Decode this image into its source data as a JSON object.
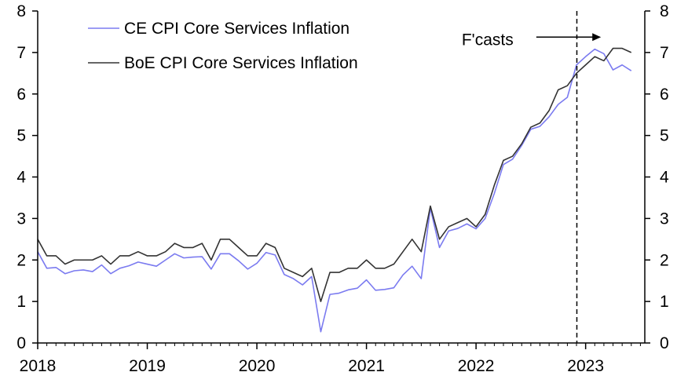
{
  "chart_data": {
    "type": "line",
    "title": "",
    "xlabel": "",
    "ylabel": "",
    "ylim": [
      0,
      8
    ],
    "yticks": [
      0,
      1,
      2,
      3,
      4,
      5,
      6,
      7,
      8
    ],
    "y2lim": [
      0,
      8
    ],
    "y2ticks": [
      0,
      1,
      2,
      3,
      4,
      5,
      6,
      7,
      8
    ],
    "xlim": [
      2018.0,
      2023.54
    ],
    "xticks": [
      {
        "value": 2018.0,
        "label": "2018"
      },
      {
        "value": 2019.0,
        "label": "2019"
      },
      {
        "value": 2020.0,
        "label": "2020"
      },
      {
        "value": 2021.0,
        "label": "2021"
      },
      {
        "value": 2022.0,
        "label": "2022"
      },
      {
        "value": 2023.0,
        "label": "2023"
      }
    ],
    "legend_position": "top-left",
    "colors": {
      "ce": "#7b7bf0",
      "boe": "#333333",
      "axis": "#000000"
    },
    "start": 2018.0,
    "step": 0.08333,
    "series": [
      {
        "name": "CE CPI Core Services Inflation",
        "key": "ce",
        "values": [
          2.2,
          1.8,
          1.82,
          1.67,
          1.74,
          1.76,
          1.72,
          1.88,
          1.67,
          1.8,
          1.86,
          1.95,
          1.9,
          1.85,
          2.0,
          2.15,
          2.05,
          2.07,
          2.08,
          1.78,
          2.15,
          2.15,
          1.98,
          1.78,
          1.92,
          2.18,
          2.12,
          1.65,
          1.55,
          1.4,
          1.6,
          0.27,
          1.17,
          1.2,
          1.28,
          1.32,
          1.52,
          1.27,
          1.29,
          1.33,
          1.64,
          1.85,
          1.55,
          3.25,
          2.3,
          2.7,
          2.76,
          2.87,
          2.75,
          3.0,
          3.6,
          4.3,
          4.43,
          4.76,
          5.15,
          5.22,
          5.45,
          5.75,
          5.92,
          6.7,
          6.9,
          7.08,
          6.97,
          6.58,
          6.7,
          6.56
        ]
      },
      {
        "name": "BoE CPI Core Services Inflation",
        "key": "boe",
        "values": [
          2.5,
          2.1,
          2.1,
          1.9,
          2.0,
          2.0,
          2.0,
          2.1,
          1.9,
          2.1,
          2.1,
          2.2,
          2.1,
          2.1,
          2.2,
          2.4,
          2.3,
          2.3,
          2.4,
          2.0,
          2.5,
          2.5,
          2.3,
          2.1,
          2.1,
          2.4,
          2.3,
          1.8,
          1.7,
          1.6,
          1.8,
          1.0,
          1.7,
          1.7,
          1.8,
          1.8,
          2.0,
          1.8,
          1.8,
          1.9,
          2.2,
          2.5,
          2.2,
          3.3,
          2.5,
          2.8,
          2.9,
          3.0,
          2.8,
          3.1,
          3.8,
          4.4,
          4.5,
          4.8,
          5.2,
          5.3,
          5.6,
          6.1,
          6.2,
          6.5,
          6.7,
          6.9,
          6.8,
          7.1,
          7.1,
          7.0
        ]
      }
    ],
    "forecast_line": {
      "x": 2022.92
    },
    "annotation": {
      "text": "F'casts",
      "arrow_from_x": 2022.55,
      "arrow_to_x": 2023.14,
      "y": 7.37
    }
  }
}
